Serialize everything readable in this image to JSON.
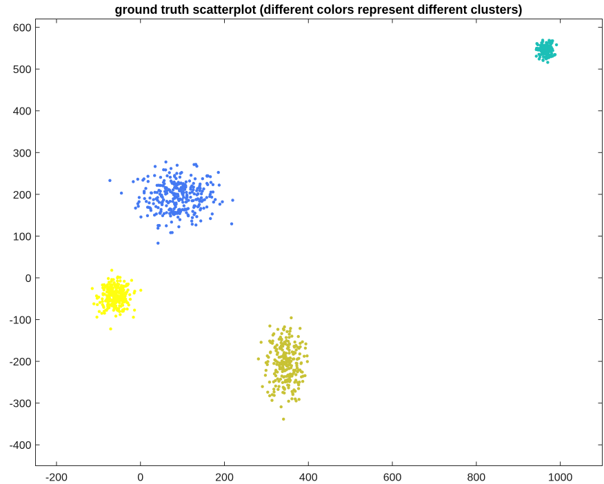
{
  "chart_data": {
    "type": "scatter",
    "title": "ground truth scatterplot (different colors represent different clusters)",
    "xlabel": "",
    "ylabel": "",
    "xlim": [
      -250,
      1100
    ],
    "ylim": [
      -450,
      620
    ],
    "xticks": [
      -200,
      0,
      200,
      400,
      600,
      800,
      1000
    ],
    "yticks": [
      -400,
      -300,
      -200,
      -100,
      0,
      100,
      200,
      300,
      400,
      500,
      600
    ],
    "grid": false,
    "legend": "none",
    "series": [
      {
        "color": "#4479f2",
        "cluster": {
          "center_x": 90,
          "center_y": 195,
          "spread_x": 85,
          "spread_y": 60,
          "count": 300
        }
      },
      {
        "color": "#ffff10",
        "cluster": {
          "center_x": -60,
          "center_y": -45,
          "spread_x": 35,
          "spread_y": 35,
          "count": 280
        }
      },
      {
        "color": "#c8c235",
        "cluster": {
          "center_x": 345,
          "center_y": -205,
          "spread_x": 40,
          "spread_y": 85,
          "count": 250
        }
      },
      {
        "color": "#1cbfb7",
        "cluster": {
          "center_x": 965,
          "center_y": 545,
          "spread_x": 18,
          "spread_y": 20,
          "count": 150
        }
      }
    ]
  }
}
